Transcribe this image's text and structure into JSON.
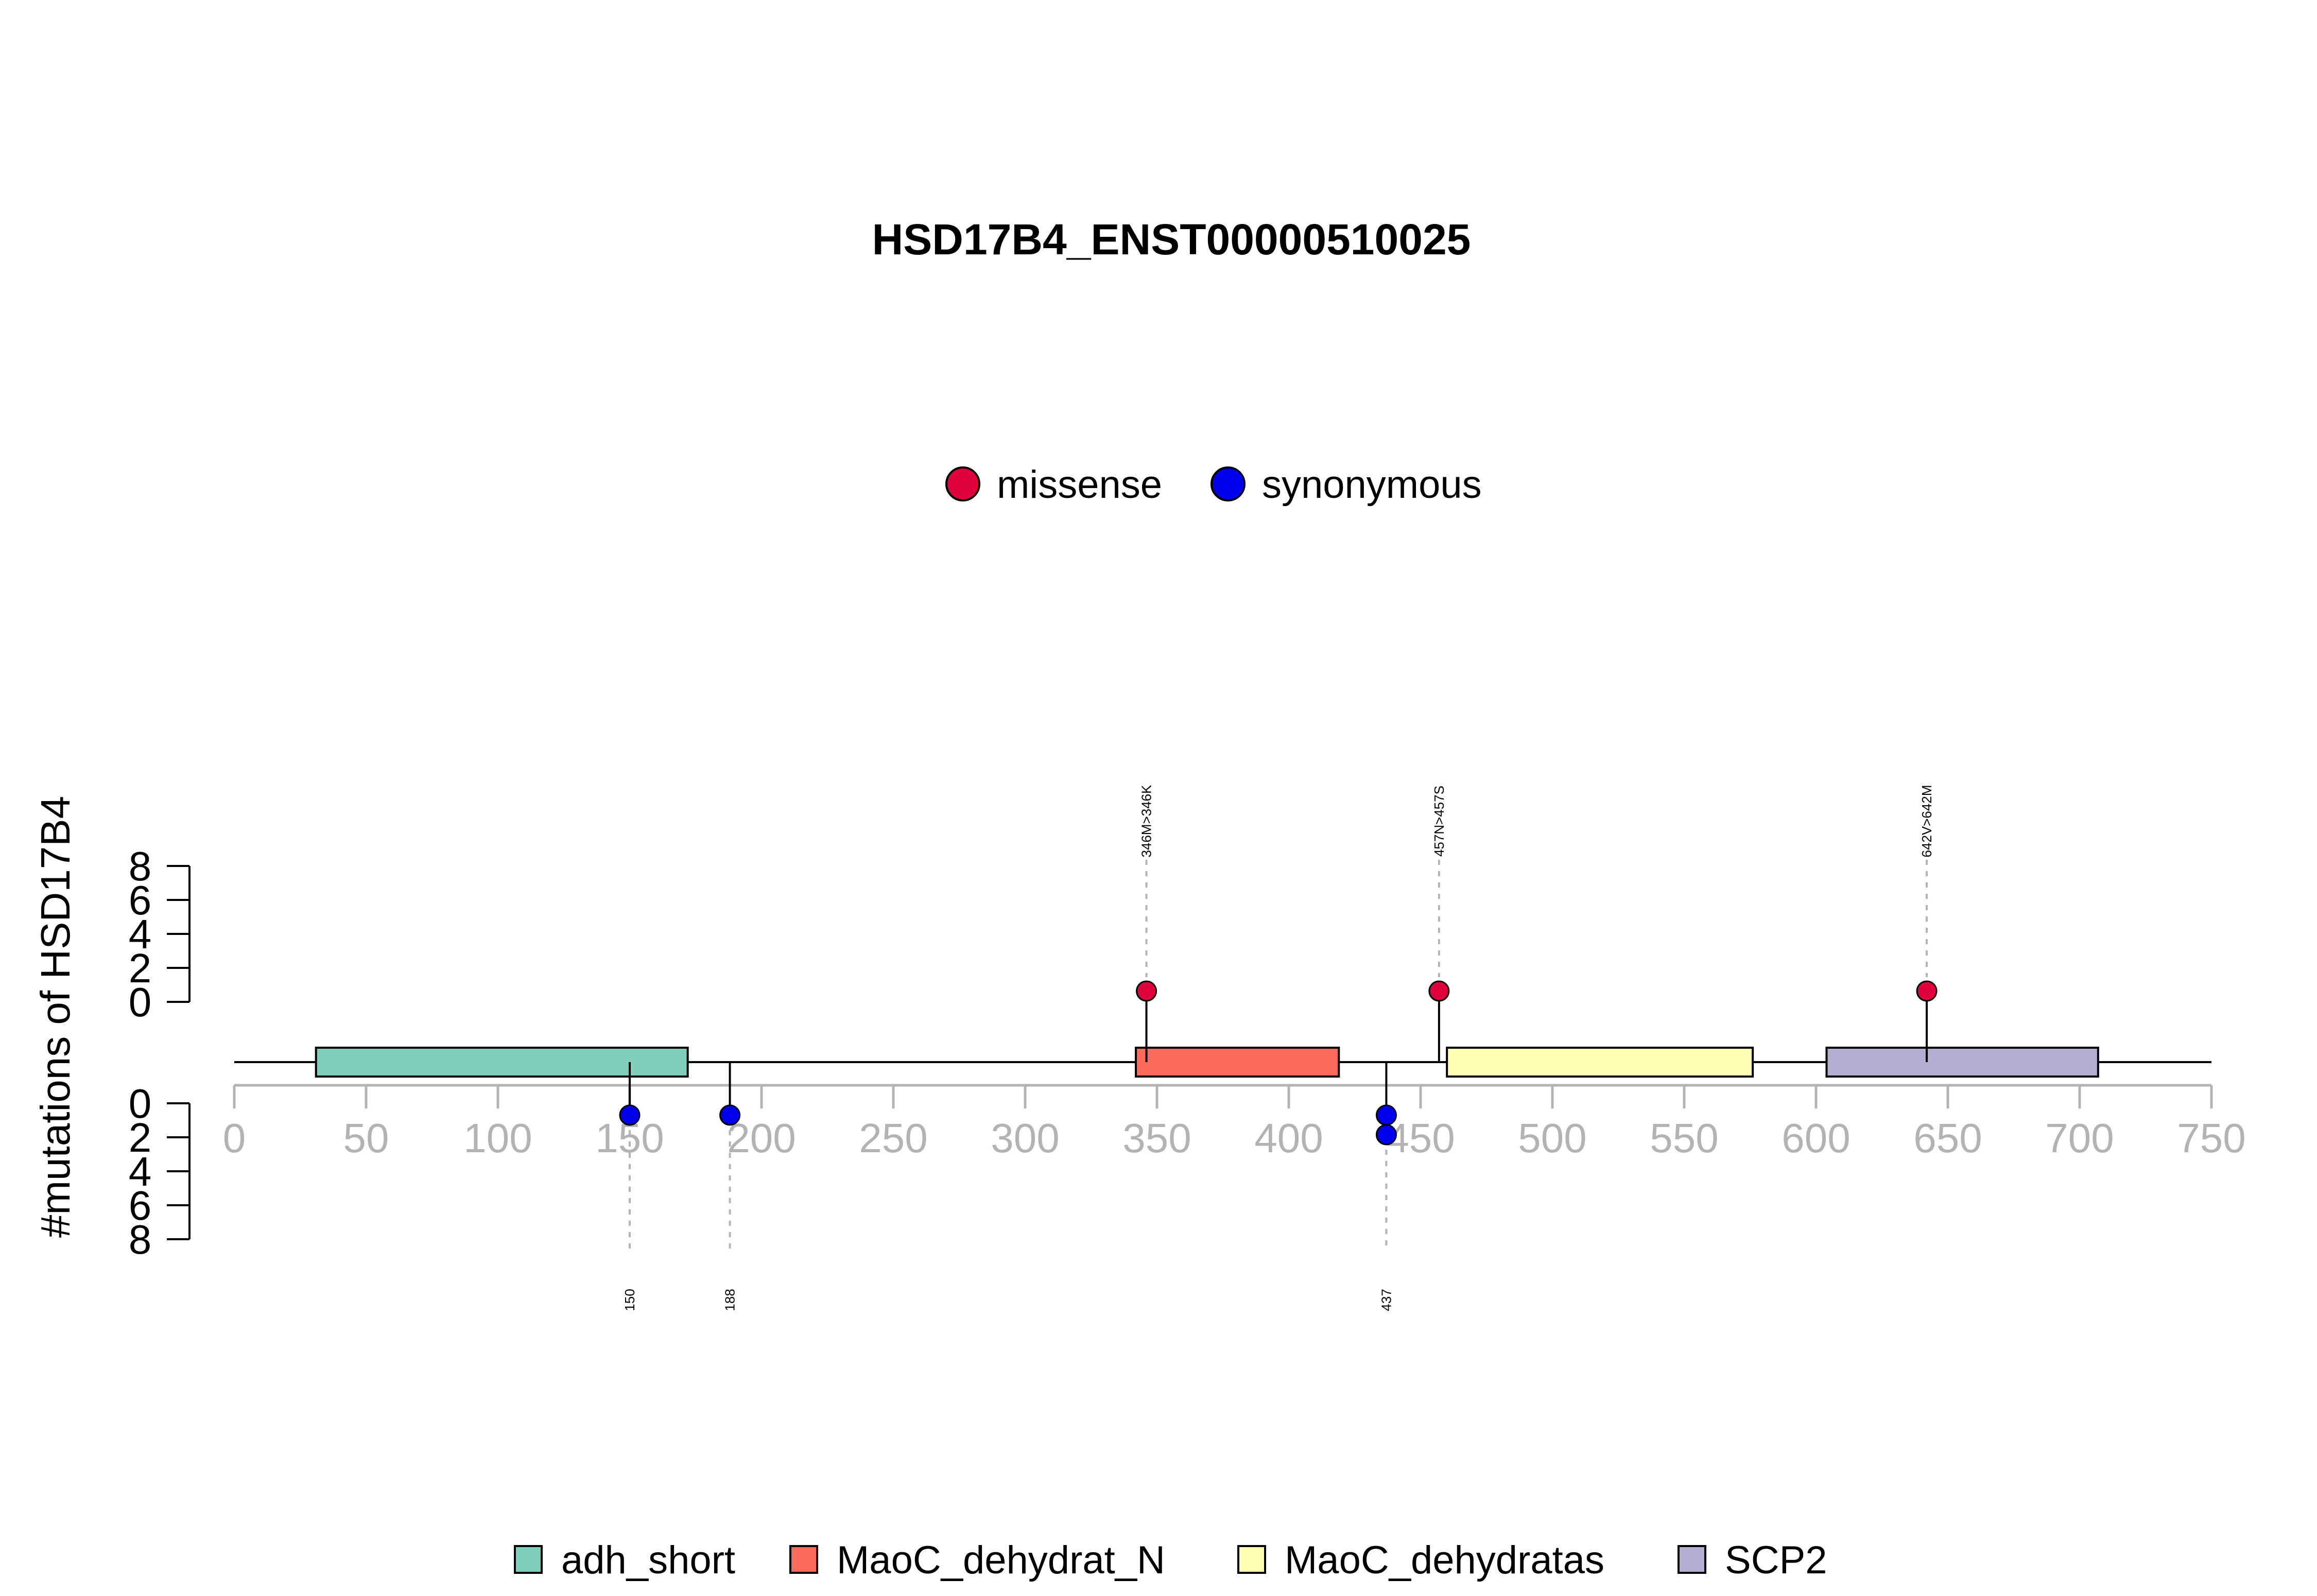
{
  "chart_data": {
    "type": "lollipop",
    "title": "HSD17B4_ENST00000510025",
    "ylabel": "#mutations of HSD17B4",
    "xlim": [
      0,
      750
    ],
    "x_ticks": [
      0,
      50,
      100,
      150,
      200,
      250,
      300,
      350,
      400,
      450,
      500,
      550,
      600,
      650,
      700,
      750
    ],
    "y_ticks": [
      0,
      2,
      4,
      6,
      8
    ],
    "mutation_legend": [
      {
        "name": "missense",
        "color": "#e0003c"
      },
      {
        "name": "synonymous",
        "color": "#0000ee"
      }
    ],
    "domain_legend": [
      {
        "name": "adh_short",
        "color": "#7fcdbb"
      },
      {
        "name": "MaoC_dehydrat_N",
        "color": "#fb6a5a"
      },
      {
        "name": "MaoC_dehydratas",
        "color": "#ffffb3"
      },
      {
        "name": "SCP2",
        "color": "#b3aed3"
      }
    ],
    "domains": [
      {
        "name": "adh_short",
        "start": 31,
        "end": 172
      },
      {
        "name": "MaoC_dehydrat_N",
        "start": 342,
        "end": 419
      },
      {
        "name": "MaoC_dehydratas",
        "start": 460,
        "end": 576
      },
      {
        "name": "SCP2",
        "start": 604,
        "end": 707
      }
    ],
    "mutations_top": [
      {
        "position": 346,
        "count": 1,
        "type": "missense",
        "label": "346M>346K"
      },
      {
        "position": 457,
        "count": 1,
        "type": "missense",
        "label": "457N>457S"
      },
      {
        "position": 642,
        "count": 1,
        "type": "missense",
        "label": "642V>642M"
      }
    ],
    "mutations_bottom": [
      {
        "position": 150,
        "count": 1,
        "type": "synonymous",
        "label": "150"
      },
      {
        "position": 188,
        "count": 1,
        "type": "synonymous",
        "label": "188"
      },
      {
        "position": 437,
        "count": 2,
        "type": "synonymous",
        "label": "437"
      }
    ]
  }
}
